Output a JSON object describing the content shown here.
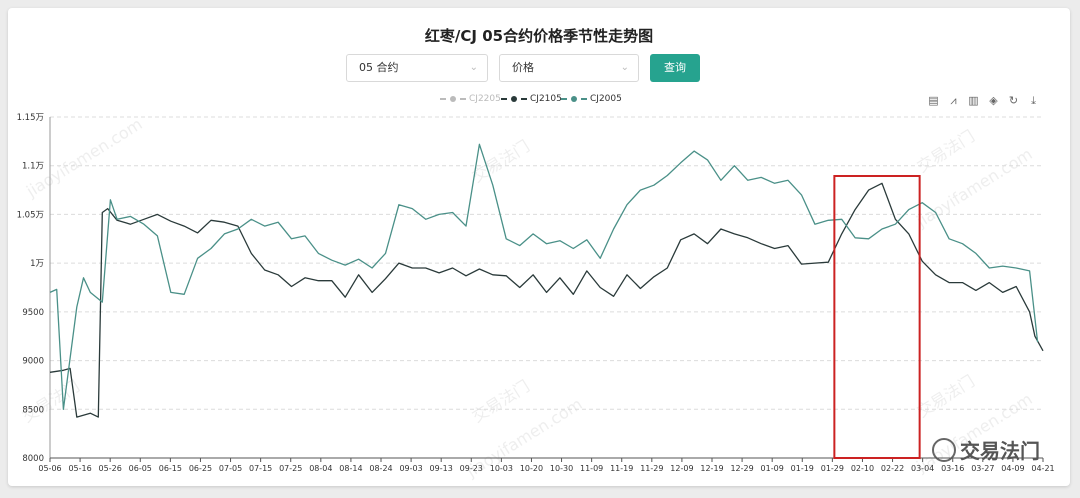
{
  "title": "红枣/CJ 05合约价格季节性走势图",
  "controls": {
    "contract_select": "05 合约",
    "metric_select": "价格",
    "query_button": "查询"
  },
  "legend": [
    {
      "name": "CJ2205",
      "color": "#bbbbbb"
    },
    {
      "name": "CJ2105",
      "color": "#2a3a3a"
    },
    {
      "name": "CJ2005",
      "color": "#4a9088"
    }
  ],
  "toolbox": [
    "data-view-icon",
    "line-chart-icon",
    "bar-chart-icon",
    "stack-icon",
    "restore-icon",
    "download-icon"
  ],
  "watermark": "交易法门",
  "chart_data": {
    "type": "line",
    "y_ticks": [
      "8000",
      "8500",
      "9000",
      "9500",
      "1万",
      "1.05万",
      "1.1万",
      "1.15万"
    ],
    "ylim": [
      8000,
      11500
    ],
    "x_ticks": [
      "05-06",
      "05-16",
      "05-26",
      "06-05",
      "06-15",
      "06-25",
      "07-05",
      "07-15",
      "07-25",
      "08-04",
      "08-14",
      "08-24",
      "09-03",
      "09-13",
      "09-23",
      "10-03",
      "10-20",
      "10-30",
      "11-09",
      "11-19",
      "11-29",
      "12-09",
      "12-19",
      "12-29",
      "01-09",
      "01-19",
      "01-29",
      "02-10",
      "02-22",
      "03-04",
      "03-16",
      "03-27",
      "04-09",
      "04-21"
    ],
    "series": [
      {
        "name": "CJ2105",
        "color": "#2a3a3a",
        "points": [
          [
            0,
            8880
          ],
          [
            1,
            8900
          ],
          [
            1.5,
            8920
          ],
          [
            2,
            8420
          ],
          [
            3,
            8460
          ],
          [
            3.6,
            8420
          ],
          [
            3.9,
            10520
          ],
          [
            4.3,
            10560
          ],
          [
            5,
            10440
          ],
          [
            6,
            10400
          ],
          [
            7,
            10450
          ],
          [
            8,
            10500
          ],
          [
            9,
            10430
          ],
          [
            10,
            10380
          ],
          [
            11,
            10310
          ],
          [
            12,
            10440
          ],
          [
            13,
            10420
          ],
          [
            14,
            10380
          ],
          [
            15,
            10100
          ],
          [
            16,
            9930
          ],
          [
            17,
            9880
          ],
          [
            18,
            9760
          ],
          [
            19,
            9850
          ],
          [
            20,
            9820
          ],
          [
            21,
            9820
          ],
          [
            22,
            9650
          ],
          [
            23,
            9880
          ],
          [
            24,
            9700
          ],
          [
            25,
            9840
          ],
          [
            26,
            10000
          ],
          [
            27,
            9950
          ],
          [
            28,
            9950
          ],
          [
            29,
            9900
          ],
          [
            30,
            9950
          ],
          [
            31,
            9870
          ],
          [
            32,
            9940
          ],
          [
            33,
            9880
          ],
          [
            34,
            9870
          ],
          [
            35,
            9750
          ],
          [
            36,
            9880
          ],
          [
            37,
            9700
          ],
          [
            38,
            9850
          ],
          [
            39,
            9680
          ],
          [
            40,
            9920
          ],
          [
            41,
            9750
          ],
          [
            42,
            9660
          ],
          [
            43,
            9880
          ],
          [
            44,
            9740
          ],
          [
            45,
            9860
          ],
          [
            46,
            9950
          ],
          [
            47,
            10240
          ],
          [
            48,
            10300
          ],
          [
            49,
            10200
          ],
          [
            50,
            10350
          ],
          [
            51,
            10300
          ],
          [
            52,
            10260
          ],
          [
            53,
            10200
          ],
          [
            54,
            10150
          ],
          [
            55,
            10180
          ],
          [
            56,
            9990
          ],
          [
            57,
            10000
          ],
          [
            58,
            10010
          ],
          [
            59,
            10300
          ],
          [
            60,
            10550
          ],
          [
            61,
            10750
          ],
          [
            62,
            10820
          ],
          [
            63,
            10450
          ],
          [
            64,
            10300
          ],
          [
            65,
            10020
          ],
          [
            66,
            9880
          ],
          [
            67,
            9800
          ],
          [
            68,
            9800
          ],
          [
            69,
            9720
          ],
          [
            70,
            9800
          ],
          [
            71,
            9700
          ],
          [
            72,
            9760
          ],
          [
            73,
            9500
          ],
          [
            73.4,
            9250
          ],
          [
            74,
            9100
          ]
        ]
      },
      {
        "name": "CJ2005",
        "color": "#4a9088",
        "points": [
          [
            0,
            9700
          ],
          [
            0.5,
            9730
          ],
          [
            1,
            8500
          ],
          [
            2,
            9550
          ],
          [
            2.5,
            9850
          ],
          [
            3,
            9700
          ],
          [
            3.9,
            9600
          ],
          [
            4.5,
            10650
          ],
          [
            5,
            10450
          ],
          [
            6,
            10480
          ],
          [
            7,
            10400
          ],
          [
            8,
            10280
          ],
          [
            9,
            9700
          ],
          [
            10,
            9680
          ],
          [
            11,
            10050
          ],
          [
            12,
            10150
          ],
          [
            13,
            10300
          ],
          [
            14,
            10350
          ],
          [
            15,
            10450
          ],
          [
            16,
            10380
          ],
          [
            17,
            10420
          ],
          [
            18,
            10250
          ],
          [
            19,
            10280
          ],
          [
            20,
            10100
          ],
          [
            21,
            10030
          ],
          [
            22,
            9980
          ],
          [
            23,
            10040
          ],
          [
            24,
            9950
          ],
          [
            25,
            10100
          ],
          [
            26,
            10600
          ],
          [
            27,
            10560
          ],
          [
            28,
            10450
          ],
          [
            29,
            10500
          ],
          [
            30,
            10520
          ],
          [
            31,
            10380
          ],
          [
            32,
            11220
          ],
          [
            33,
            10800
          ],
          [
            34,
            10250
          ],
          [
            35,
            10180
          ],
          [
            36,
            10300
          ],
          [
            37,
            10200
          ],
          [
            38,
            10230
          ],
          [
            39,
            10150
          ],
          [
            40,
            10240
          ],
          [
            41,
            10050
          ],
          [
            42,
            10350
          ],
          [
            43,
            10600
          ],
          [
            44,
            10750
          ],
          [
            45,
            10800
          ],
          [
            46,
            10900
          ],
          [
            47,
            11030
          ],
          [
            48,
            11150
          ],
          [
            49,
            11060
          ],
          [
            50,
            10850
          ],
          [
            51,
            11000
          ],
          [
            52,
            10850
          ],
          [
            53,
            10880
          ],
          [
            54,
            10820
          ],
          [
            55,
            10850
          ],
          [
            56,
            10700
          ],
          [
            57,
            10400
          ],
          [
            58,
            10440
          ],
          [
            59,
            10450
          ],
          [
            60,
            10260
          ],
          [
            61,
            10250
          ],
          [
            62,
            10350
          ],
          [
            63,
            10400
          ],
          [
            64,
            10550
          ],
          [
            65,
            10620
          ],
          [
            66,
            10520
          ],
          [
            67,
            10250
          ],
          [
            68,
            10200
          ],
          [
            69,
            10100
          ],
          [
            70,
            9950
          ],
          [
            71,
            9970
          ],
          [
            72,
            9950
          ],
          [
            73,
            9920
          ],
          [
            73.6,
            9190
          ]
        ]
      }
    ],
    "highlight_box": {
      "x_from": "01-29",
      "x_to": "03-04",
      "color": "#cc2222"
    }
  }
}
